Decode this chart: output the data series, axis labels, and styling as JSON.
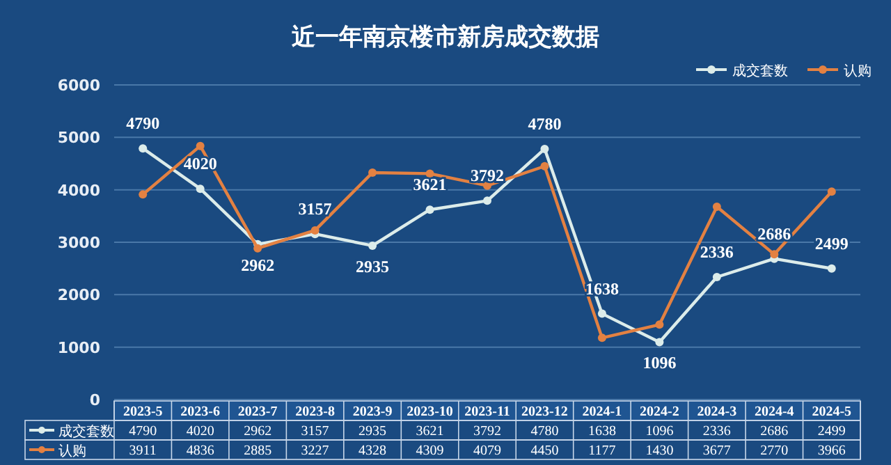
{
  "chart_data": {
    "type": "line",
    "title": "近一年南京楼市新房成交数据",
    "categories": [
      "2023-5",
      "2023-6",
      "2023-7",
      "2023-8",
      "2023-9",
      "2023-10",
      "2023-11",
      "2023-12",
      "2024-1",
      "2024-2",
      "2024-3",
      "2024-4",
      "2024-5"
    ],
    "series": [
      {
        "name": "成交套数",
        "color": "#dcecea",
        "values": [
          4790,
          4020,
          2962,
          3157,
          2935,
          3621,
          3792,
          4780,
          1638,
          1096,
          2336,
          2686,
          2499
        ]
      },
      {
        "name": "认购",
        "color": "#e38142",
        "values": [
          3911,
          4836,
          2885,
          3227,
          4328,
          4309,
          4079,
          4450,
          1177,
          1430,
          3677,
          2770,
          3966
        ]
      }
    ],
    "annotations": [
      {
        "text": "4790",
        "x": "2023-5",
        "y": 4790
      },
      {
        "text": "4020",
        "x": "2023-6",
        "y": 4020
      },
      {
        "text": "2962",
        "x": "2023-7",
        "y": 2962
      },
      {
        "text": "3157",
        "x": "2023-8",
        "y": 3157
      },
      {
        "text": "2935",
        "x": "2023-9",
        "y": 2935
      },
      {
        "text": "3621",
        "x": "2023-10",
        "y": 3621
      },
      {
        "text": "3792",
        "x": "2023-11",
        "y": 3792
      },
      {
        "text": "4780",
        "x": "2023-12",
        "y": 4780
      },
      {
        "text": "1638",
        "x": "2024-1",
        "y": 1638
      },
      {
        "text": "1096",
        "x": "2024-2",
        "y": 1096
      },
      {
        "text": "2336",
        "x": "2024-3",
        "y": 2336
      },
      {
        "text": "2686",
        "x": "2024-4",
        "y": 2686
      },
      {
        "text": "2499",
        "x": "2024-5",
        "y": 2499
      }
    ],
    "ylim": [
      0,
      6000
    ],
    "yticks": [
      0,
      1000,
      2000,
      3000,
      4000,
      5000,
      6000
    ],
    "grid": "y",
    "legend": "top right",
    "marker": "circle",
    "line_style": "solid",
    "data_labels": true
  }
}
